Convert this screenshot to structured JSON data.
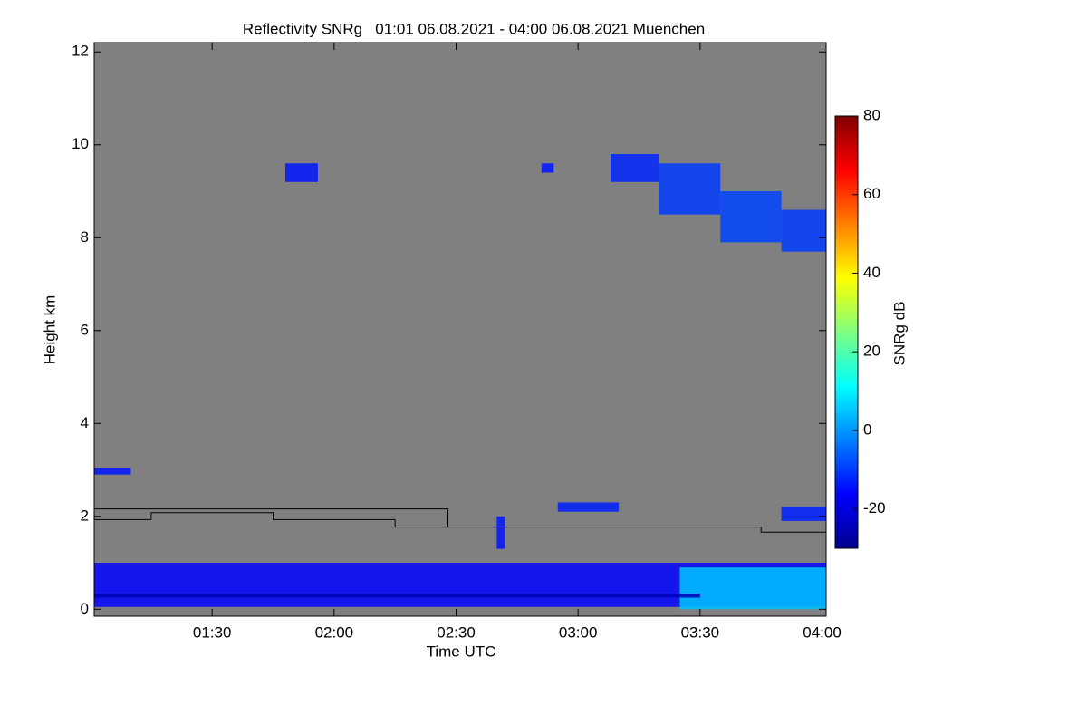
{
  "chart_data": {
    "type": "heatmap",
    "title": "Reflectivity SNRg   01:01 06.08.2021 - 04:00 06.08.2021 Muenchen",
    "x_label": "Time UTC",
    "y_label": "Height km",
    "colorbar_label": "SNRg dB",
    "background": "#808080",
    "xlim": [
      "01:01",
      "04:01"
    ],
    "xticks": [
      "01:30",
      "02:00",
      "02:30",
      "03:00",
      "03:30",
      "04:00"
    ],
    "ylim": [
      -0.15,
      12.2
    ],
    "yticks": [
      0,
      2,
      4,
      6,
      8,
      10,
      12
    ],
    "zlim": [
      -30,
      80
    ],
    "zticks": [
      -20,
      0,
      20,
      40,
      60,
      80
    ],
    "echoes": [
      {
        "x0": "03:08",
        "x1": "03:20",
        "y0": 9.2,
        "y1": 9.8,
        "value": -12
      },
      {
        "x0": "03:20",
        "x1": "03:35",
        "y0": 8.5,
        "y1": 9.6,
        "value": -10
      },
      {
        "x0": "03:35",
        "x1": "03:50",
        "y0": 7.9,
        "y1": 9.0,
        "value": -9
      },
      {
        "x0": "03:50",
        "x1": "04:01",
        "y0": 7.7,
        "y1": 8.6,
        "value": -10
      },
      {
        "x0": "01:48",
        "x1": "01:56",
        "y0": 9.2,
        "y1": 9.6,
        "value": -14
      },
      {
        "x0": "02:51",
        "x1": "02:54",
        "y0": 9.4,
        "y1": 9.6,
        "value": -14
      },
      {
        "x0": "01:01",
        "x1": "01:10",
        "y0": 2.9,
        "y1": 3.05,
        "value": -14
      },
      {
        "x0": "02:55",
        "x1": "03:10",
        "y0": 2.1,
        "y1": 2.3,
        "value": -13
      },
      {
        "x0": "02:40",
        "x1": "02:42",
        "y0": 1.3,
        "y1": 2.0,
        "value": -14
      },
      {
        "x0": "03:50",
        "x1": "04:01",
        "y0": 1.9,
        "y1": 2.2,
        "value": -13
      },
      {
        "x0": "01:01",
        "x1": "04:01",
        "y0": 0.05,
        "y1": 1.0,
        "value": -16
      },
      {
        "x0": "03:25",
        "x1": "04:01",
        "y0": 0.0,
        "y1": 0.9,
        "value": 5
      },
      {
        "x0": "01:01",
        "x1": "03:30",
        "y0": 0.25,
        "y1": 0.33,
        "value": -24
      }
    ],
    "series": [
      {
        "color": "#000000",
        "x": [
          "01:01",
          "01:15",
          "01:15",
          "01:45",
          "01:45",
          "02:15",
          "02:15",
          "03:45",
          "03:45",
          "04:01"
        ],
        "values": [
          1.93,
          1.93,
          2.08,
          2.08,
          1.93,
          1.93,
          1.77,
          1.77,
          1.66,
          1.66
        ]
      },
      {
        "color": "#000000",
        "x": [
          "01:01",
          "02:28",
          "02:28"
        ],
        "values": [
          2.16,
          2.16,
          1.77
        ]
      }
    ]
  }
}
